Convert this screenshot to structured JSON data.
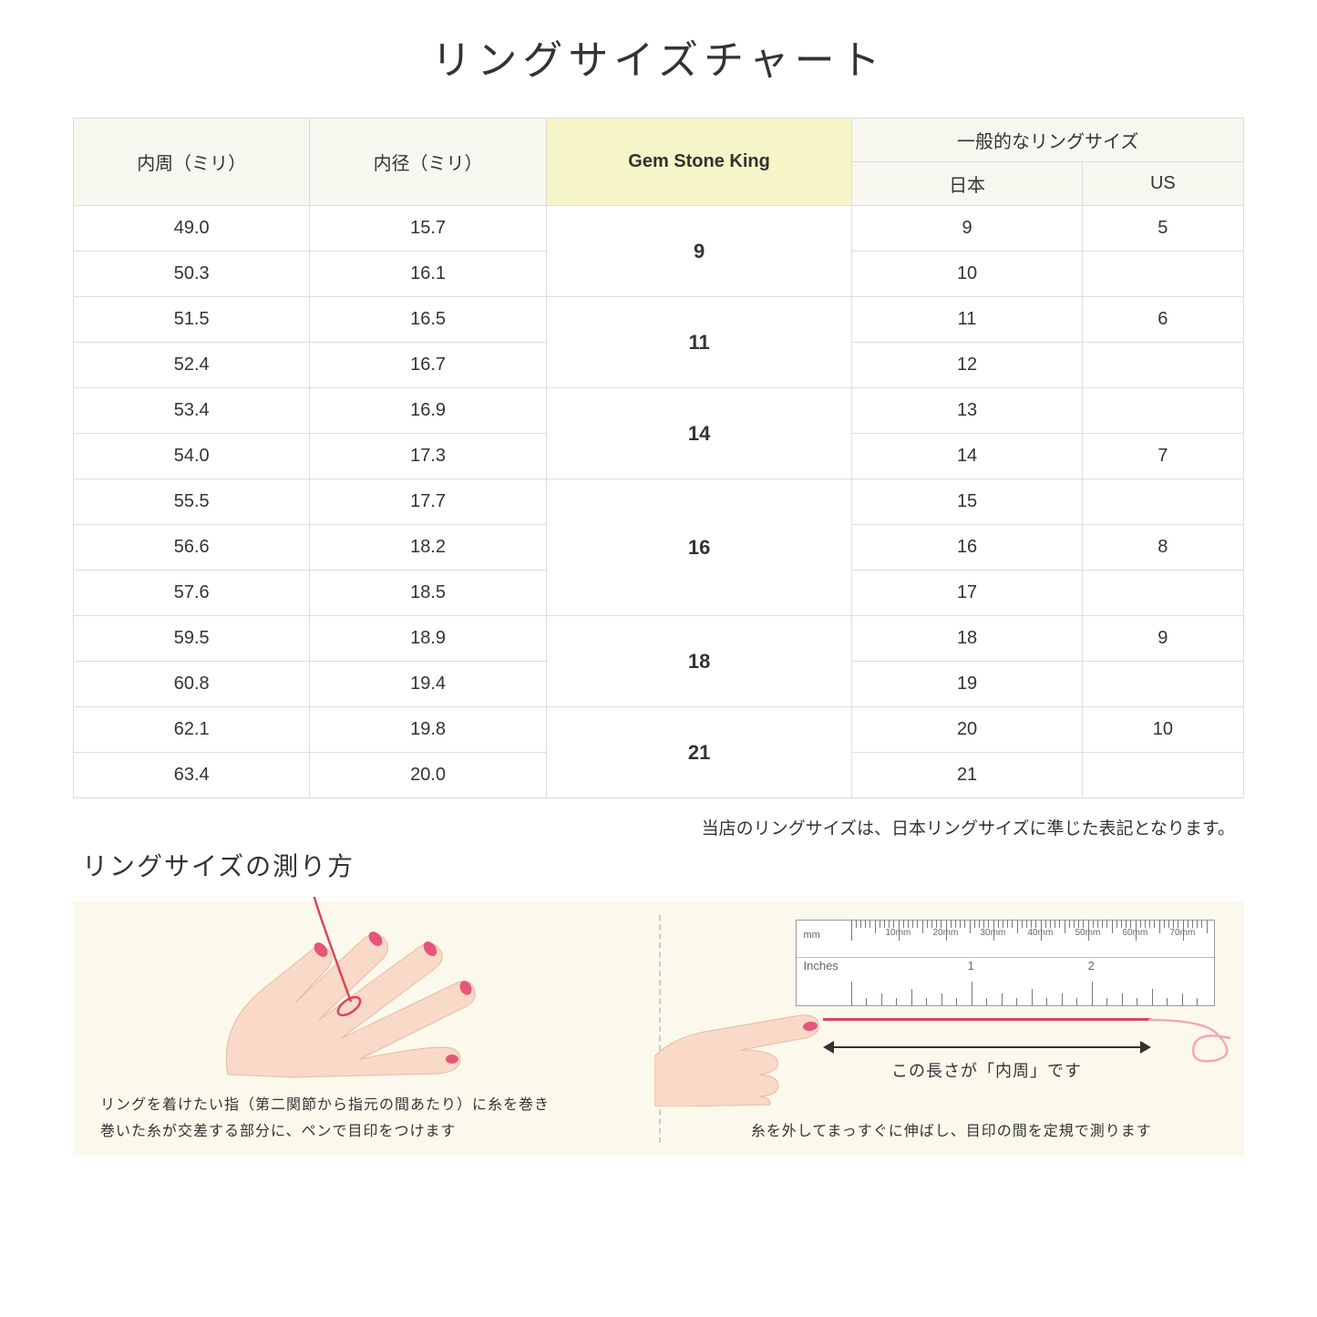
{
  "title": "リングサイズチャート",
  "headers": {
    "circumference": "内周（ミリ）",
    "diameter": "内径（ミリ）",
    "gsk": "Gem Stone King",
    "general": "一般的なリングサイズ",
    "japan": "日本",
    "us": "US"
  },
  "groups": [
    {
      "gsk": "9",
      "rows": [
        {
          "c": "49.0",
          "d": "15.7",
          "jp": "9",
          "us": "5"
        },
        {
          "c": "50.3",
          "d": "16.1",
          "jp": "10",
          "us": ""
        }
      ]
    },
    {
      "gsk": "11",
      "rows": [
        {
          "c": "51.5",
          "d": "16.5",
          "jp": "11",
          "us": "6"
        },
        {
          "c": "52.4",
          "d": "16.7",
          "jp": "12",
          "us": ""
        }
      ]
    },
    {
      "gsk": "14",
      "rows": [
        {
          "c": "53.4",
          "d": "16.9",
          "jp": "13",
          "us": ""
        },
        {
          "c": "54.0",
          "d": "17.3",
          "jp": "14",
          "us": "7"
        }
      ]
    },
    {
      "gsk": "16",
      "rows": [
        {
          "c": "55.5",
          "d": "17.7",
          "jp": "15",
          "us": ""
        },
        {
          "c": "56.6",
          "d": "18.2",
          "jp": "16",
          "us": "8"
        },
        {
          "c": "57.6",
          "d": "18.5",
          "jp": "17",
          "us": ""
        }
      ]
    },
    {
      "gsk": "18",
      "rows": [
        {
          "c": "59.5",
          "d": "18.9",
          "jp": "18",
          "us": "9"
        },
        {
          "c": "60.8",
          "d": "19.4",
          "jp": "19",
          "us": ""
        }
      ]
    },
    {
      "gsk": "21",
      "rows": [
        {
          "c": "62.1",
          "d": "19.8",
          "jp": "20",
          "us": "10"
        },
        {
          "c": "63.4",
          "d": "20.0",
          "jp": "21",
          "us": ""
        }
      ]
    }
  ],
  "note": "当店のリングサイズは、日本リングサイズに準じた表記となります。",
  "subtitle": "リングサイズの測り方",
  "howto": {
    "left_caption": "リングを着けたい指（第二関節から指元の間あたり）に糸を巻き\n巻いた糸が交差する部分に、ペンで目印をつけます",
    "right_caption": "糸を外してまっすぐに伸ばし、目印の間を定規で測ります",
    "arrow_label": "この長さが「内周」です",
    "ruler_mm": "mm",
    "ruler_in": "Inches",
    "ruler_mm_labels": [
      "10mm",
      "20mm",
      "30mm",
      "40mm",
      "50mm",
      "60mm",
      "70mm"
    ],
    "ruler_in_labels": [
      "1",
      "2"
    ]
  },
  "colors": {
    "header_bg": "#f7f7f0",
    "highlight_bg": "#f5f5c8",
    "border": "#dddddd",
    "howto_bg": "#fbf9ec",
    "skin": "#f9d9c8",
    "skin_shadow": "#e9b9a0",
    "nail": "#e8557a",
    "string": "#d94560"
  }
}
